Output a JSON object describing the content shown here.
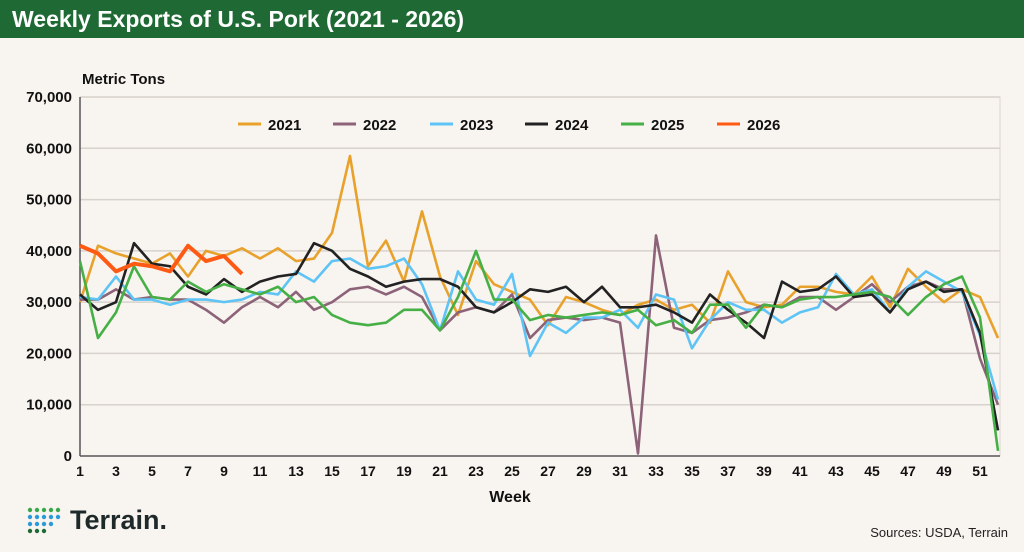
{
  "header": {
    "title": "Weekly Exports of U.S. Pork (2021 - 2026)"
  },
  "footer": {
    "source": "Sources: USDA, Terrain",
    "logo": "Terrain."
  },
  "chart_data": {
    "type": "line",
    "title": "Weekly Exports of U.S. Pork (2021 - 2026)",
    "ylabel": "Metric Tons",
    "xlabel": "Week",
    "ylim": [
      0,
      70000
    ],
    "xlim": [
      1,
      52
    ],
    "yticks": [
      "0",
      "10,000",
      "20,000",
      "30,000",
      "40,000",
      "50,000",
      "60,000",
      "70,000"
    ],
    "xticks": [
      1,
      3,
      5,
      7,
      9,
      11,
      13,
      15,
      17,
      19,
      21,
      23,
      25,
      27,
      29,
      31,
      33,
      35,
      37,
      39,
      41,
      43,
      45,
      47,
      49,
      51
    ],
    "grid": true,
    "legend": "top",
    "series": [
      {
        "name": "2021",
        "color": "#e8a22c",
        "values": [
          30000,
          41000,
          39500,
          38500,
          37500,
          39500,
          35000,
          40000,
          39000,
          40500,
          38500,
          40500,
          38000,
          38500,
          43500,
          58500,
          37000,
          42000,
          34000,
          47700,
          35000,
          27500,
          38000,
          33500,
          32000,
          30500,
          25500,
          31000,
          30000,
          28500,
          27500,
          29500,
          30500,
          28500,
          29500,
          26000,
          36000,
          30000,
          29000,
          29500,
          33000,
          33000,
          32000,
          31500,
          35000,
          29000,
          36500,
          33000,
          30000,
          32500,
          31000,
          23000
        ]
      },
      {
        "name": "2022",
        "color": "#8c6378",
        "values": [
          30500,
          30500,
          32500,
          30500,
          31000,
          30500,
          30500,
          28500,
          26000,
          29000,
          31000,
          29000,
          32000,
          28500,
          30000,
          32500,
          33000,
          31500,
          33000,
          31000,
          24500,
          28000,
          29000,
          28000,
          31500,
          23000,
          26500,
          27000,
          26500,
          27000,
          26000,
          500,
          43000,
          25000,
          24000,
          26500,
          27000,
          28000,
          29500,
          29000,
          31000,
          31000,
          28500,
          31000,
          33500,
          30000,
          33000,
          34000,
          32500,
          32500,
          19000,
          10000
        ]
      },
      {
        "name": "2023",
        "color": "#5ec4f5",
        "values": [
          31000,
          30500,
          35000,
          30500,
          30500,
          29500,
          30500,
          30500,
          30000,
          30500,
          32000,
          31500,
          36000,
          34000,
          38000,
          38500,
          36500,
          37000,
          38500,
          33500,
          24500,
          36000,
          30500,
          29500,
          35500,
          19500,
          26000,
          24000,
          27000,
          27000,
          28500,
          25000,
          31500,
          30500,
          21000,
          26500,
          30000,
          28500,
          28500,
          26000,
          28000,
          29000,
          35500,
          31500,
          32500,
          28000,
          33000,
          36000,
          34000,
          32000,
          23500,
          11000
        ]
      },
      {
        "name": "2024",
        "color": "#222222",
        "values": [
          31500,
          28500,
          30000,
          41500,
          37500,
          37000,
          33000,
          31500,
          34500,
          32000,
          34000,
          35000,
          35500,
          41500,
          40000,
          36500,
          35000,
          33000,
          34000,
          34500,
          34500,
          33000,
          29000,
          28000,
          30000,
          32500,
          32000,
          33000,
          30000,
          33000,
          29000,
          29000,
          29500,
          28000,
          26000,
          31500,
          28500,
          26000,
          23000,
          34000,
          32000,
          32500,
          35000,
          31000,
          31500,
          28000,
          32500,
          34000,
          32000,
          32500,
          24000,
          5000
        ]
      },
      {
        "name": "2025",
        "color": "#46b046",
        "values": [
          38000,
          23000,
          28000,
          37000,
          31000,
          30500,
          34000,
          32000,
          33500,
          32500,
          31500,
          33000,
          30000,
          31000,
          27500,
          26000,
          25500,
          26000,
          28500,
          28500,
          24500,
          31000,
          40000,
          30500,
          30500,
          26500,
          27500,
          27000,
          27500,
          28000,
          27500,
          28500,
          25500,
          26500,
          24000,
          29500,
          29500,
          25000,
          29500,
          29000,
          30500,
          31000,
          31000,
          31500,
          32000,
          31000,
          27500,
          31000,
          33500,
          35000,
          27000,
          1000
        ]
      },
      {
        "name": "2026",
        "color": "#ff5a14",
        "values": [
          41000,
          39500,
          36000,
          37500,
          37000,
          36000,
          41000,
          38000,
          39000,
          35500
        ]
      }
    ]
  }
}
